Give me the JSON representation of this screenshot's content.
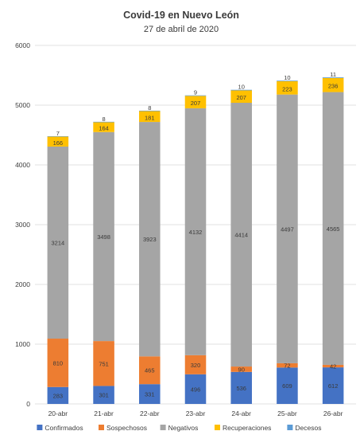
{
  "chart_data": {
    "type": "bar",
    "stacked": true,
    "title": "Covid-19 en Nuevo León",
    "subtitle": "27 de abril de 2020",
    "xlabel": "",
    "ylabel": "",
    "ylim": [
      0,
      6000
    ],
    "yticks": [
      0,
      1000,
      2000,
      3000,
      4000,
      5000,
      6000
    ],
    "grid": true,
    "legend_position": "bottom",
    "categories": [
      "20-abr",
      "21-abr",
      "22-abr",
      "23-abr",
      "24-abr",
      "25-abr",
      "26-abr"
    ],
    "series": [
      {
        "name": "Confirmados",
        "color": "#4472c4",
        "values": [
          283,
          301,
          331,
          496,
          536,
          609,
          612
        ]
      },
      {
        "name": "Sospechosos",
        "color": "#ed7d31",
        "values": [
          810,
          751,
          465,
          320,
          90,
          72,
          42
        ]
      },
      {
        "name": "Negativos",
        "color": "#a5a5a5",
        "values": [
          3214,
          3498,
          3923,
          4132,
          4414,
          4497,
          4565
        ]
      },
      {
        "name": "Recuperaciones",
        "color": "#ffc000",
        "values": [
          166,
          164,
          181,
          207,
          207,
          223,
          236
        ]
      },
      {
        "name": "Decesos",
        "color": "#5b9bd5",
        "values": [
          7,
          8,
          8,
          9,
          10,
          10,
          11
        ]
      }
    ]
  }
}
